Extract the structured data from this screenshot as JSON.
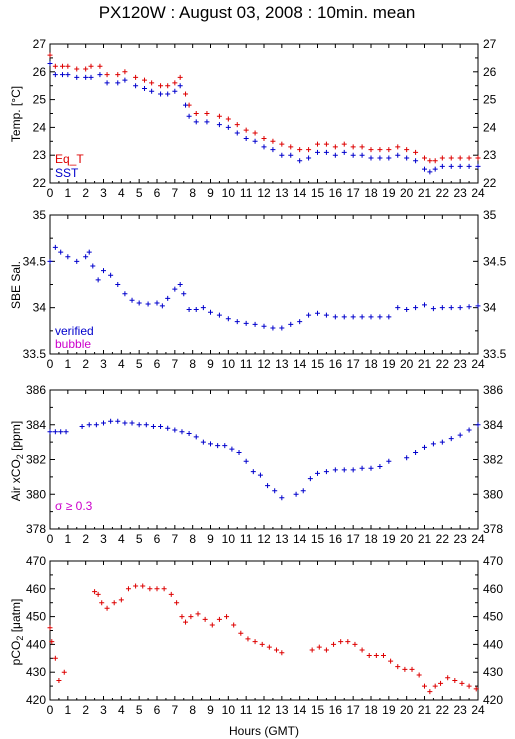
{
  "figure": {
    "title": "PX120W : August 03, 2008 : 10min. mean",
    "xlabel": "Hours (GMT)",
    "xticks": [
      "0",
      "1",
      "2",
      "3",
      "4",
      "5",
      "6",
      "7",
      "8",
      "9",
      "10",
      "11",
      "12",
      "13",
      "14",
      "15",
      "16",
      "17",
      "18",
      "19",
      "20",
      "21",
      "22",
      "23",
      "24"
    ]
  },
  "colors": {
    "red": "#dd0000",
    "blue": "#0000cc",
    "magenta": "#cc00cc",
    "axis": "#000000"
  },
  "chart_data": [
    {
      "type": "scatter",
      "ylabel": "Temp. [°C]",
      "ylim": [
        22,
        27
      ],
      "yticks": [
        "22",
        "23",
        "24",
        "25",
        "26",
        "27"
      ],
      "xlim": [
        0,
        24
      ],
      "legend": [
        {
          "label": "Eq_T",
          "color": "#dd0000"
        },
        {
          "label": "SST",
          "color": "#0000cc"
        }
      ],
      "series": [
        {
          "name": "Eq_T",
          "color": "#dd0000",
          "marker": "cross",
          "x": [
            0,
            0.3,
            0.7,
            1.0,
            1.5,
            2.0,
            2.3,
            2.8,
            3.2,
            3.8,
            4.2,
            4.8,
            5.3,
            5.7,
            6.2,
            6.6,
            7.0,
            7.3,
            7.6,
            7.8,
            8.2,
            8.8,
            9.5,
            10.0,
            10.5,
            11.0,
            11.5,
            12.0,
            12.5,
            13.0,
            13.5,
            14.0,
            14.5,
            15.0,
            15.5,
            16.0,
            16.5,
            17.0,
            17.5,
            18.0,
            18.5,
            19.0,
            19.5,
            20.0,
            20.5,
            21.0,
            21.3,
            21.6,
            22.0,
            22.5,
            23.0,
            23.5,
            24.0
          ],
          "y": [
            26.6,
            26.2,
            26.2,
            26.2,
            26.1,
            26.1,
            26.2,
            26.2,
            25.9,
            25.9,
            26.0,
            25.8,
            25.7,
            25.6,
            25.5,
            25.5,
            25.6,
            25.8,
            25.2,
            24.8,
            24.5,
            24.5,
            24.4,
            24.3,
            24.1,
            23.9,
            23.8,
            23.6,
            23.5,
            23.4,
            23.3,
            23.2,
            23.2,
            23.4,
            23.4,
            23.3,
            23.4,
            23.3,
            23.3,
            23.2,
            23.2,
            23.2,
            23.3,
            23.2,
            23.1,
            22.9,
            22.8,
            22.8,
            22.9,
            22.9,
            22.9,
            22.9,
            22.9
          ]
        },
        {
          "name": "SST",
          "color": "#0000cc",
          "marker": "cross",
          "x": [
            0,
            0.3,
            0.7,
            1.0,
            1.5,
            2.0,
            2.3,
            2.8,
            3.2,
            3.8,
            4.2,
            4.8,
            5.3,
            5.7,
            6.2,
            6.6,
            7.0,
            7.3,
            7.6,
            7.8,
            8.2,
            8.8,
            9.5,
            10.0,
            10.5,
            11.0,
            11.5,
            12.0,
            12.5,
            13.0,
            13.5,
            14.0,
            14.5,
            15.0,
            15.5,
            16.0,
            16.5,
            17.0,
            17.5,
            18.0,
            18.5,
            19.0,
            19.5,
            20.0,
            20.5,
            21.0,
            21.3,
            21.6,
            22.0,
            22.5,
            23.0,
            23.5,
            24.0
          ],
          "y": [
            26.3,
            25.9,
            25.9,
            25.9,
            25.8,
            25.8,
            25.8,
            25.9,
            25.6,
            25.6,
            25.7,
            25.5,
            25.4,
            25.3,
            25.2,
            25.2,
            25.3,
            25.5,
            24.8,
            24.4,
            24.2,
            24.2,
            24.1,
            24.0,
            23.8,
            23.6,
            23.5,
            23.3,
            23.2,
            23.0,
            23.0,
            22.8,
            22.9,
            23.1,
            23.1,
            23.0,
            23.1,
            23.0,
            23.0,
            22.9,
            22.9,
            22.9,
            23.0,
            22.9,
            22.8,
            22.5,
            22.4,
            22.5,
            22.6,
            22.6,
            22.6,
            22.6,
            22.6
          ]
        }
      ]
    },
    {
      "type": "scatter",
      "ylabel": "SBE Sal.",
      "ylim": [
        33.5,
        35
      ],
      "yticks": [
        "33.5",
        "34",
        "34.5",
        "35"
      ],
      "xlim": [
        0,
        24
      ],
      "legend": [
        {
          "label": "verified",
          "color": "#0000cc"
        },
        {
          "label": "bubble",
          "color": "#cc00cc"
        }
      ],
      "series": [
        {
          "name": "verified",
          "color": "#0000cc",
          "marker": "cross",
          "x": [
            0,
            0.3,
            0.6,
            1.0,
            1.5,
            2.0,
            2.2,
            2.4,
            2.7,
            3.0,
            3.4,
            3.8,
            4.2,
            4.6,
            5.0,
            5.5,
            6.0,
            6.3,
            6.6,
            7.0,
            7.3,
            7.5,
            7.8,
            8.2,
            8.6,
            9.0,
            9.5,
            10.0,
            10.5,
            11.0,
            11.5,
            12.0,
            12.5,
            13.0,
            13.5,
            14.0,
            14.5,
            15.0,
            15.5,
            16.0,
            16.5,
            17.0,
            17.5,
            18.0,
            18.5,
            19.0,
            19.5,
            20.0,
            20.5,
            21.0,
            21.5,
            22.0,
            22.5,
            23.0,
            23.5,
            24.0
          ],
          "y": [
            34.5,
            34.65,
            34.6,
            34.55,
            34.5,
            34.55,
            34.6,
            34.45,
            34.3,
            34.4,
            34.35,
            34.25,
            34.15,
            34.08,
            34.05,
            34.04,
            34.05,
            34.02,
            34.1,
            34.2,
            34.25,
            34.15,
            33.98,
            33.98,
            34.0,
            33.95,
            33.92,
            33.88,
            33.85,
            33.83,
            33.82,
            33.8,
            33.78,
            33.78,
            33.82,
            33.85,
            33.92,
            33.94,
            33.92,
            33.9,
            33.9,
            33.9,
            33.9,
            33.9,
            33.9,
            33.9,
            34.0,
            33.98,
            34.0,
            34.03,
            33.99,
            34.0,
            34.0,
            34.0,
            34.01,
            34.02
          ]
        }
      ]
    },
    {
      "type": "scatter",
      "ylabel": "Air xCO2 [ppm]",
      "ylim": [
        378,
        386
      ],
      "yticks": [
        "378",
        "380",
        "382",
        "384",
        "386"
      ],
      "xlim": [
        0,
        24
      ],
      "annotation": "σ ≥ 0.3",
      "series": [
        {
          "name": "",
          "color": "#0000cc",
          "marker": "cross",
          "x": [
            0,
            0.3,
            0.6,
            0.9,
            1.8,
            2.2,
            2.6,
            3.0,
            3.4,
            3.8,
            4.2,
            4.6,
            5.0,
            5.4,
            5.8,
            6.2,
            6.6,
            7.0,
            7.4,
            7.8,
            8.2,
            8.6,
            9.0,
            9.4,
            9.8,
            10.2,
            10.6,
            11.0,
            11.4,
            11.8,
            12.2,
            12.6,
            13.0,
            13.8,
            14.2,
            14.6,
            15.0,
            15.5,
            16.0,
            16.5,
            17.0,
            17.5,
            18.0,
            18.5,
            19.0,
            20.0,
            20.5,
            21.0,
            21.5,
            22.0,
            22.5,
            23.0,
            23.5,
            24.0
          ],
          "y": [
            383.6,
            383.6,
            383.6,
            383.6,
            383.9,
            384.0,
            384.0,
            384.1,
            384.2,
            384.2,
            384.1,
            384.1,
            384.0,
            384.0,
            383.9,
            383.9,
            383.8,
            383.7,
            383.6,
            383.5,
            383.3,
            383.0,
            382.9,
            382.8,
            382.8,
            382.6,
            382.4,
            381.9,
            381.3,
            381.1,
            380.5,
            380.2,
            379.8,
            380.0,
            380.2,
            380.9,
            381.2,
            381.3,
            381.4,
            381.4,
            381.4,
            381.5,
            381.5,
            381.6,
            381.9,
            382.1,
            382.4,
            382.7,
            382.9,
            383.0,
            383.2,
            383.4,
            383.7,
            384.0
          ]
        }
      ]
    },
    {
      "type": "scatter",
      "ylabel": "pCO2 [μatm]",
      "ylim": [
        420,
        470
      ],
      "yticks": [
        "420",
        "430",
        "440",
        "450",
        "460",
        "470"
      ],
      "xlim": [
        0,
        24
      ],
      "series": [
        {
          "name": "",
          "color": "#dd0000",
          "marker": "cross",
          "x": [
            0,
            0.1,
            0.3,
            0.5,
            0.8,
            2.5,
            2.7,
            2.9,
            3.2,
            3.6,
            4.0,
            4.4,
            4.8,
            5.2,
            5.6,
            6.0,
            6.4,
            6.8,
            7.1,
            7.4,
            7.6,
            7.9,
            8.3,
            8.7,
            9.1,
            9.5,
            9.9,
            10.3,
            10.7,
            11.1,
            11.5,
            11.9,
            12.3,
            12.7,
            13.0,
            14.7,
            15.1,
            15.5,
            15.9,
            16.3,
            16.7,
            17.1,
            17.5,
            17.9,
            18.3,
            18.7,
            19.1,
            19.5,
            19.9,
            20.3,
            20.7,
            21.0,
            21.3,
            21.6,
            21.9,
            22.3,
            22.7,
            23.1,
            23.5,
            23.9
          ],
          "y": [
            446,
            441,
            435,
            427,
            430,
            459,
            458,
            455,
            453,
            455,
            456,
            460,
            461,
            461,
            460,
            460,
            460,
            458,
            455,
            450,
            448,
            450,
            451,
            449,
            447,
            449,
            450,
            447,
            444,
            442,
            441,
            440,
            439,
            438,
            437,
            438,
            439,
            438,
            440,
            441,
            441,
            440,
            438,
            436,
            436,
            436,
            434,
            432,
            431,
            431,
            429,
            425,
            423,
            425,
            426,
            428,
            427,
            426,
            425,
            424
          ]
        }
      ]
    }
  ]
}
